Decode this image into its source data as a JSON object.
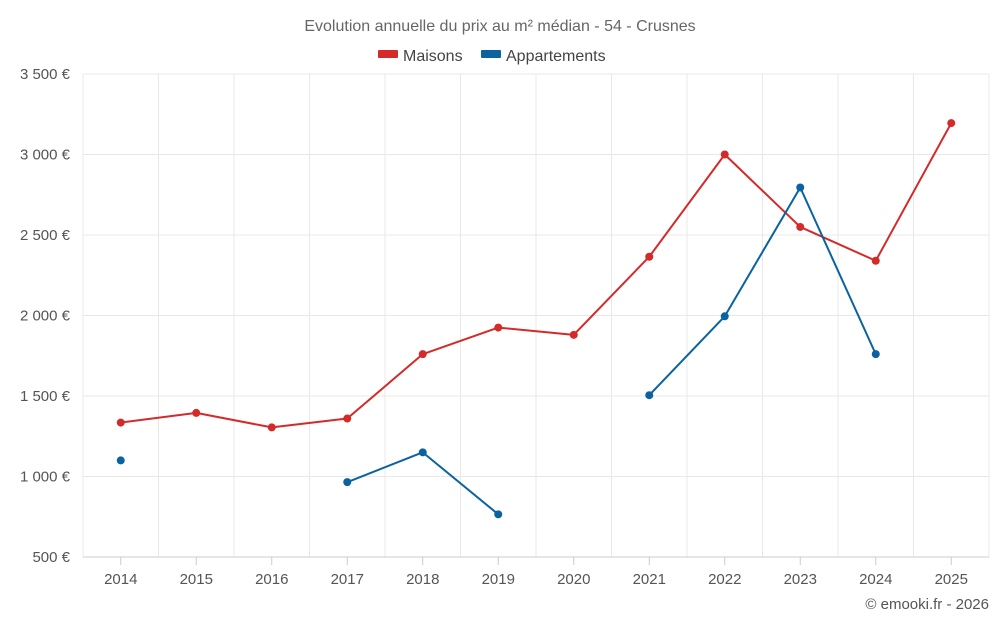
{
  "chart_data": {
    "type": "line",
    "title": "Evolution annuelle du prix au m² médian - 54 - Crusnes",
    "categories": [
      "2014",
      "2015",
      "2016",
      "2017",
      "2018",
      "2019",
      "2020",
      "2021",
      "2022",
      "2023",
      "2024",
      "2025"
    ],
    "ylim": [
      500,
      3500
    ],
    "y_ticks": [
      500,
      1000,
      1500,
      2000,
      2500,
      3000,
      3500
    ],
    "y_tick_labels": [
      "500 €",
      "1 000 €",
      "1 500 €",
      "2 000 €",
      "2 500 €",
      "3 000 €",
      "3 500 €"
    ],
    "grid": true,
    "legend_position": "top-center",
    "series": [
      {
        "name": "Maisons",
        "color": "#d42a2a",
        "values": [
          1335,
          1395,
          1305,
          1360,
          1760,
          1925,
          1880,
          2365,
          3000,
          2550,
          2340,
          3195
        ]
      },
      {
        "name": "Appartements",
        "color": "#0a62a0",
        "values": [
          1100,
          null,
          null,
          965,
          1150,
          765,
          null,
          1505,
          1995,
          2795,
          1760,
          null
        ]
      }
    ],
    "credit": "© emooki.fr - 2026"
  }
}
